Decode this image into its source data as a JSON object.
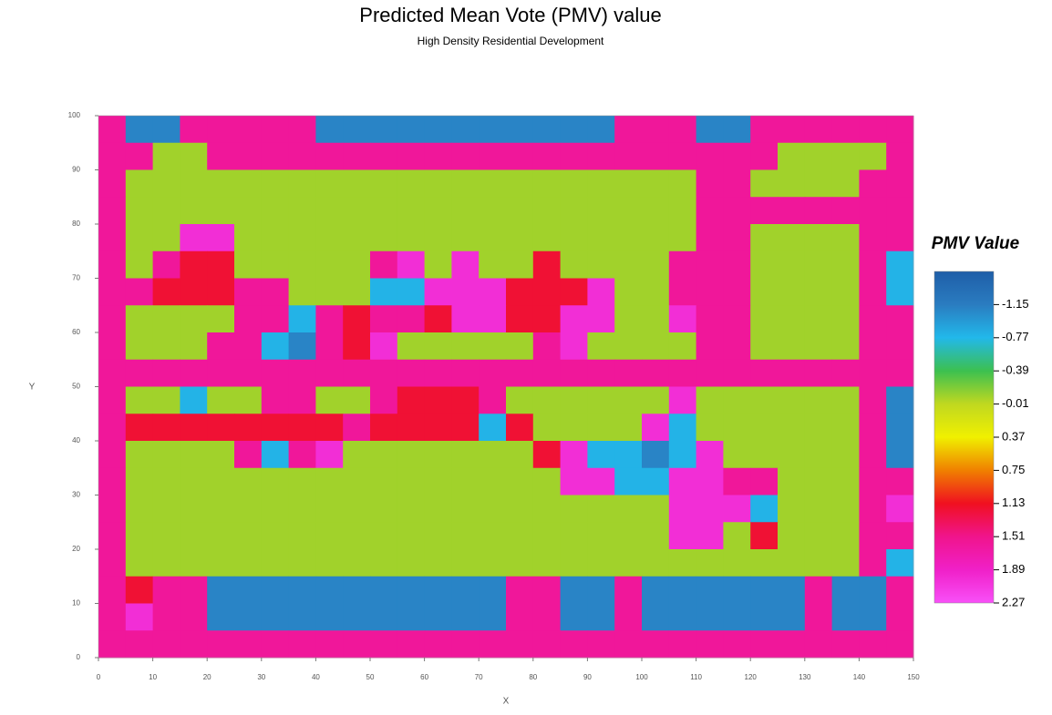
{
  "chart_data": {
    "type": "heatmap",
    "title": "Predicted Mean Vote (PMV) value",
    "subtitle": "High Density Residential Development",
    "x_label": "X",
    "y_label": "Y",
    "colorbar_title": "PMV Value",
    "xlim": [
      0,
      150
    ],
    "ylim": [
      0,
      100
    ],
    "xticks": [
      0,
      10,
      20,
      30,
      40,
      50,
      60,
      70,
      80,
      90,
      100,
      110,
      120,
      130,
      140,
      150
    ],
    "yticks": [
      0,
      10,
      20,
      30,
      40,
      50,
      60,
      70,
      80,
      90,
      100
    ],
    "zlim": [
      -1.53,
      2.27
    ],
    "zticks": [
      -1.15,
      -0.77,
      -0.39,
      -0.01,
      0.37,
      0.75,
      1.13,
      1.51,
      1.89,
      2.27
    ],
    "colorscale": [
      [
        -1.53,
        "#1f5ea8"
      ],
      [
        -1.15,
        "#2a7cc0"
      ],
      [
        -0.77,
        "#22b8ea"
      ],
      [
        -0.39,
        "#3cc050"
      ],
      [
        -0.01,
        "#c0d820"
      ],
      [
        0.37,
        "#f0f000"
      ],
      [
        0.75,
        "#f08000"
      ],
      [
        1.13,
        "#f01020"
      ],
      [
        1.51,
        "#f0148c"
      ],
      [
        1.89,
        "#f020c8"
      ],
      [
        2.27,
        "#f850f8"
      ]
    ],
    "x": [
      2.5,
      7.5,
      12.5,
      17.5,
      22.5,
      27.5,
      32.5,
      37.5,
      42.5,
      47.5,
      52.5,
      57.5,
      62.5,
      67.5,
      72.5,
      77.5,
      82.5,
      87.5,
      92.5,
      97.5,
      102.5,
      107.5,
      112.5,
      117.5,
      122.5,
      127.5,
      132.5,
      137.5,
      142.5,
      147.5
    ],
    "y": [
      97.5,
      92.5,
      87.5,
      82.5,
      77.5,
      72.5,
      67.5,
      62.5,
      57.5,
      52.5,
      47.5,
      42.5,
      37.5,
      32.5,
      27.5,
      22.5,
      17.5,
      12.5,
      7.5,
      2.5
    ],
    "z": [
      [
        1.6,
        -1.1,
        -1.1,
        1.6,
        1.6,
        1.6,
        1.6,
        1.6,
        -1.1,
        -1.1,
        -1.1,
        -1.1,
        -1.1,
        -1.1,
        -1.1,
        -1.1,
        -1.1,
        -1.1,
        -1.1,
        1.6,
        1.6,
        1.6,
        -1.1,
        -1.1,
        1.6,
        1.6,
        1.6,
        1.6,
        1.6,
        1.6
      ],
      [
        1.6,
        1.6,
        -0.1,
        -0.1,
        1.6,
        1.6,
        1.6,
        1.6,
        1.6,
        1.6,
        1.6,
        1.6,
        1.6,
        1.6,
        1.6,
        1.6,
        1.6,
        1.6,
        1.6,
        1.6,
        1.6,
        1.6,
        1.6,
        1.6,
        1.6,
        -0.1,
        -0.1,
        -0.1,
        -0.1,
        1.6
      ],
      [
        1.6,
        -0.1,
        -0.1,
        -0.1,
        -0.1,
        -0.1,
        -0.1,
        -0.1,
        -0.1,
        -0.1,
        -0.1,
        -0.1,
        -0.1,
        -0.1,
        -0.1,
        -0.1,
        -0.1,
        -0.1,
        -0.1,
        -0.1,
        -0.1,
        -0.1,
        1.6,
        1.6,
        -0.1,
        -0.1,
        -0.1,
        -0.1,
        1.6,
        1.6
      ],
      [
        1.6,
        -0.1,
        -0.1,
        -0.1,
        -0.1,
        -0.1,
        -0.1,
        -0.1,
        -0.1,
        -0.1,
        -0.1,
        -0.1,
        -0.1,
        -0.1,
        -0.1,
        -0.1,
        -0.1,
        -0.1,
        -0.1,
        -0.1,
        -0.1,
        -0.1,
        1.6,
        1.6,
        1.6,
        1.6,
        1.6,
        1.6,
        1.6,
        1.6
      ],
      [
        1.6,
        -0.1,
        -0.1,
        2,
        2,
        -0.1,
        -0.1,
        -0.1,
        -0.1,
        -0.1,
        -0.1,
        -0.1,
        -0.1,
        -0.1,
        -0.1,
        -0.1,
        -0.1,
        -0.1,
        -0.1,
        -0.1,
        -0.1,
        -0.1,
        1.6,
        1.6,
        -0.1,
        -0.1,
        -0.1,
        -0.1,
        1.6,
        1.6
      ],
      [
        1.6,
        -0.1,
        1.6,
        1.2,
        1.2,
        -0.1,
        -0.1,
        -0.1,
        -0.1,
        -0.1,
        1.6,
        2,
        -0.1,
        2,
        -0.1,
        -0.1,
        1.2,
        -0.1,
        -0.1,
        -0.1,
        -0.1,
        1.6,
        1.6,
        1.6,
        -0.1,
        -0.1,
        -0.1,
        -0.1,
        1.6,
        -0.8
      ],
      [
        1.6,
        1.6,
        1.2,
        1.2,
        1.2,
        1.6,
        1.6,
        -0.1,
        -0.1,
        -0.1,
        -0.8,
        -0.8,
        2,
        2,
        2,
        1.2,
        1.2,
        1.2,
        2,
        -0.1,
        -0.1,
        1.6,
        1.6,
        1.6,
        -0.1,
        -0.1,
        -0.1,
        -0.1,
        1.6,
        -0.8
      ],
      [
        1.6,
        -0.1,
        -0.1,
        -0.1,
        -0.1,
        1.6,
        1.6,
        -0.8,
        1.6,
        1.2,
        1.6,
        1.6,
        1.2,
        2,
        2,
        1.2,
        1.2,
        2,
        2,
        -0.1,
        -0.1,
        2,
        1.6,
        1.6,
        -0.1,
        -0.1,
        -0.1,
        -0.1,
        1.6,
        1.6
      ],
      [
        1.6,
        -0.1,
        -0.1,
        -0.1,
        1.6,
        1.6,
        -0.8,
        -1.1,
        1.6,
        1.2,
        2,
        -0.1,
        -0.1,
        -0.1,
        -0.1,
        -0.1,
        1.6,
        2,
        -0.1,
        -0.1,
        -0.1,
        -0.1,
        1.6,
        1.6,
        -0.1,
        -0.1,
        -0.1,
        -0.1,
        1.6,
        1.6
      ],
      [
        1.6,
        1.6,
        1.6,
        1.6,
        1.6,
        1.6,
        1.6,
        1.6,
        1.6,
        1.6,
        1.6,
        1.6,
        1.6,
        1.6,
        1.6,
        1.6,
        1.6,
        1.6,
        1.6,
        1.6,
        1.6,
        1.6,
        1.6,
        1.6,
        1.6,
        1.6,
        1.6,
        1.6,
        1.6,
        1.6
      ],
      [
        1.6,
        -0.1,
        -0.1,
        -0.8,
        -0.1,
        -0.1,
        1.6,
        1.6,
        -0.1,
        -0.1,
        1.6,
        1.2,
        1.2,
        1.2,
        1.6,
        -0.1,
        -0.1,
        -0.1,
        -0.1,
        -0.1,
        -0.1,
        2,
        -0.1,
        -0.1,
        -0.1,
        -0.1,
        -0.1,
        -0.1,
        1.6,
        -1.1
      ],
      [
        1.6,
        1.2,
        1.2,
        1.2,
        1.2,
        1.2,
        1.2,
        1.2,
        1.2,
        1.6,
        1.2,
        1.2,
        1.2,
        1.2,
        -0.8,
        1.2,
        -0.1,
        -0.1,
        -0.1,
        -0.1,
        2,
        -0.8,
        -0.1,
        -0.1,
        -0.1,
        -0.1,
        -0.1,
        -0.1,
        1.6,
        -1.1
      ],
      [
        1.6,
        -0.1,
        -0.1,
        -0.1,
        -0.1,
        1.6,
        -0.8,
        1.6,
        2,
        -0.1,
        -0.1,
        -0.1,
        -0.1,
        -0.1,
        -0.1,
        -0.1,
        1.2,
        2,
        -0.8,
        -0.8,
        -1.1,
        -0.8,
        2,
        -0.1,
        -0.1,
        -0.1,
        -0.1,
        -0.1,
        1.6,
        -1.1
      ],
      [
        1.6,
        -0.1,
        -0.1,
        -0.1,
        -0.1,
        -0.1,
        -0.1,
        -0.1,
        -0.1,
        -0.1,
        -0.1,
        -0.1,
        -0.1,
        -0.1,
        -0.1,
        -0.1,
        -0.1,
        2,
        2,
        -0.8,
        -0.8,
        2,
        2,
        1.6,
        1.6,
        -0.1,
        -0.1,
        -0.1,
        1.6,
        1.6
      ],
      [
        1.6,
        -0.1,
        -0.1,
        -0.1,
        -0.1,
        -0.1,
        -0.1,
        -0.1,
        -0.1,
        -0.1,
        -0.1,
        -0.1,
        -0.1,
        -0.1,
        -0.1,
        -0.1,
        -0.1,
        -0.1,
        -0.1,
        -0.1,
        -0.1,
        2,
        2,
        2,
        -0.8,
        -0.1,
        -0.1,
        -0.1,
        1.6,
        2
      ],
      [
        1.6,
        -0.1,
        -0.1,
        -0.1,
        -0.1,
        -0.1,
        -0.1,
        -0.1,
        -0.1,
        -0.1,
        -0.1,
        -0.1,
        -0.1,
        -0.1,
        -0.1,
        -0.1,
        -0.1,
        -0.1,
        -0.1,
        -0.1,
        -0.1,
        2,
        2,
        -0.1,
        1.2,
        -0.1,
        -0.1,
        -0.1,
        1.6,
        1.6
      ],
      [
        1.6,
        -0.1,
        -0.1,
        -0.1,
        -0.1,
        -0.1,
        -0.1,
        -0.1,
        -0.1,
        -0.1,
        -0.1,
        -0.1,
        -0.1,
        -0.1,
        -0.1,
        -0.1,
        -0.1,
        -0.1,
        -0.1,
        -0.1,
        -0.1,
        -0.1,
        -0.1,
        -0.1,
        -0.1,
        -0.1,
        -0.1,
        -0.1,
        1.6,
        -0.8
      ],
      [
        1.6,
        1.2,
        1.6,
        1.6,
        -1.1,
        -1.1,
        -1.1,
        -1.1,
        -1.1,
        -1.1,
        -1.1,
        -1.1,
        -1.1,
        -1.1,
        -1.1,
        1.6,
        1.6,
        -1.1,
        -1.1,
        1.6,
        -1.1,
        -1.1,
        -1.1,
        -1.1,
        -1.1,
        -1.1,
        1.6,
        -1.1,
        -1.1,
        1.6
      ],
      [
        1.6,
        2,
        1.6,
        1.6,
        -1.1,
        -1.1,
        -1.1,
        -1.1,
        -1.1,
        -1.1,
        -1.1,
        -1.1,
        -1.1,
        -1.1,
        -1.1,
        1.6,
        1.6,
        -1.1,
        -1.1,
        1.6,
        -1.1,
        -1.1,
        -1.1,
        -1.1,
        -1.1,
        -1.1,
        1.6,
        -1.1,
        -1.1,
        1.6
      ],
      [
        1.6,
        1.6,
        1.6,
        1.6,
        1.6,
        1.6,
        1.6,
        1.6,
        1.6,
        1.6,
        1.6,
        1.6,
        1.6,
        1.6,
        1.6,
        1.6,
        1.6,
        1.6,
        1.6,
        1.6,
        1.6,
        1.6,
        1.6,
        1.6,
        1.6,
        1.6,
        1.6,
        1.6,
        1.6,
        1.6
      ]
    ]
  }
}
